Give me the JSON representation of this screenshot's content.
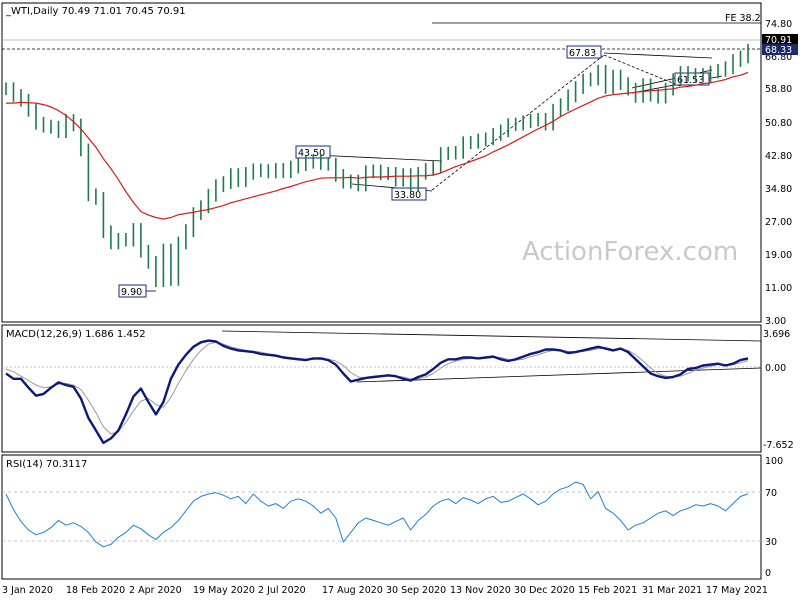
{
  "watermark": "ActionForex.com",
  "chart_data": [
    {
      "type": "line",
      "title": "_WTI,Daily  70.49 71.01 70.45 70.91",
      "y_ticks": [
        "74.80",
        "66.80",
        "58.80",
        "50.80",
        "42.80",
        "34.80",
        "27.00",
        "19.00",
        "11.00",
        "3.00"
      ],
      "ylim": [
        3,
        78
      ],
      "x_ticks": [
        "3 Jan 2020",
        "18 Feb 2020",
        "2 Apr 2020",
        "19 May 2020",
        "2 Jul 2020",
        "17 Aug 2020",
        "30 Sep 2020",
        "13 Nov 2020",
        "30 Dec 2020",
        "15 Feb 2021",
        "31 Mar 2021",
        "17 May 2021"
      ],
      "series": [
        {
          "values": [
            61.2,
            59.5,
            58.3,
            55.8,
            52.5,
            51.8,
            51.5,
            50.4,
            53.2,
            52.1,
            45.8,
            34.5,
            33.6,
            25.2,
            22.4,
            23.3,
            23.1,
            25.8,
            20.3,
            17.5,
            12.9,
            20.6,
            13.2,
            22.4,
            25.5,
            29.8,
            31.5,
            34.4,
            36.8,
            37.6,
            39.6,
            38.1,
            39.9,
            40.8,
            40.6,
            40.3,
            40.9,
            40.3,
            41.5,
            42.1,
            42.7,
            43.2,
            42.4,
            42.2,
            39.4,
            37.7,
            38.0,
            37.0,
            40.3,
            40.5,
            39.8,
            39.9,
            38.2,
            39.6,
            36.8,
            39.9,
            40.9,
            41.5,
            44.9,
            45.0,
            45.2,
            47.6,
            47.7,
            48.3,
            48.6,
            49.7,
            50.6,
            52.2,
            52.3,
            52.9,
            53.3,
            53.5,
            52.3,
            55.8,
            57.2,
            59.4,
            61.5,
            63.4,
            63.7,
            65.6,
            61.5,
            64.4,
            62.5,
            61.1,
            59.3,
            62.2,
            59.6,
            59.1,
            61.1,
            63.5,
            65.3,
            64.6,
            64.8,
            64.4,
            65.4,
            65.8,
            66.5,
            68.3,
            69.2,
            70.9
          ]
        },
        {
          "values": [
            57.6,
            57.6,
            57.8,
            57.7,
            57.6,
            57.2,
            56.6,
            55.7,
            54.5,
            52.9,
            51.1,
            48.8,
            46.5,
            43.6,
            41.1,
            38.3,
            35.3,
            32.6,
            30.3,
            29.4,
            28.8,
            28.4,
            28.8,
            29.5,
            29.8,
            30.1,
            30.5,
            30.8,
            31.3,
            31.8,
            32.5,
            33.0,
            33.5,
            34.0,
            34.5,
            35.0,
            35.5,
            36.1,
            36.6,
            37.2,
            37.8,
            38.2,
            38.7,
            38.8,
            38.8,
            38.8,
            38.9,
            38.7,
            38.9,
            39.0,
            39.0,
            39.1,
            39.2,
            39.2,
            39.2,
            39.3,
            39.3,
            39.5,
            40.0,
            40.8,
            41.6,
            42.2,
            42.9,
            43.6,
            44.3,
            45.3,
            46.2,
            47.1,
            48.1,
            49.1,
            50.1,
            51.1,
            52.0,
            53.0,
            54.2,
            55.2,
            56.1,
            57.0,
            57.9,
            58.8,
            59.4,
            59.7,
            59.9,
            60.1,
            60.3,
            60.5,
            60.7,
            60.8,
            61.0,
            61.2,
            61.6,
            61.8,
            62.1,
            62.5,
            62.7,
            63.1,
            63.5,
            64.2,
            64.6,
            65.3
          ]
        }
      ],
      "annotations": [
        "FE 38.2",
        "70.91",
        "68.33",
        "67.83",
        "61.53",
        "43.50",
        "33.80",
        "9.90"
      ]
    },
    {
      "type": "line",
      "title": "MACD(12,26,9) 1.686 1.452",
      "y_ticks": [
        "3.696",
        "0.00",
        "-7.652"
      ],
      "ylim": [
        -8.6,
        5.0
      ],
      "series": [
        {
          "values": [
            0.0,
            -0.6,
            -0.6,
            -1.6,
            -2.5,
            -2.3,
            -1.6,
            -1.0,
            -1.3,
            -1.5,
            -2.8,
            -5.0,
            -6.4,
            -7.8,
            -7.3,
            -6.4,
            -4.6,
            -2.6,
            -1.7,
            -3.2,
            -4.6,
            -3.2,
            -0.6,
            1.0,
            2.1,
            3.0,
            3.5,
            3.7,
            3.6,
            3.1,
            2.8,
            2.6,
            2.5,
            2.4,
            2.2,
            2.1,
            2.0,
            1.8,
            1.7,
            1.6,
            1.5,
            1.7,
            1.7,
            1.5,
            1.0,
            0.0,
            -0.9,
            -0.7,
            -0.5,
            -0.4,
            -0.3,
            -0.2,
            -0.3,
            -0.6,
            -0.8,
            -0.4,
            -0.1,
            0.5,
            1.2,
            1.6,
            1.6,
            1.8,
            1.8,
            1.7,
            1.8,
            1.9,
            1.6,
            1.4,
            1.6,
            1.9,
            2.2,
            2.4,
            2.7,
            2.7,
            2.6,
            2.3,
            2.4,
            2.6,
            2.8,
            3.0,
            2.8,
            2.6,
            2.8,
            2.4,
            1.6,
            0.8,
            0.0,
            -0.3,
            -0.5,
            -0.4,
            -0.1,
            0.5,
            0.6,
            0.9,
            1.0,
            1.1,
            0.9,
            1.1,
            1.5,
            1.7
          ]
        },
        {
          "values": [
            0.5,
            0.2,
            -0.3,
            -0.8,
            -1.3,
            -1.6,
            -1.5,
            -1.2,
            -1.1,
            -1.3,
            -1.8,
            -3.0,
            -4.4,
            -6.0,
            -6.8,
            -6.5,
            -5.5,
            -4.2,
            -3.1,
            -2.8,
            -3.5,
            -3.8,
            -2.7,
            -1.1,
            0.3,
            1.6,
            2.6,
            3.3,
            3.5,
            3.3,
            3.0,
            2.8,
            2.6,
            2.5,
            2.4,
            2.2,
            2.1,
            1.9,
            1.8,
            1.7,
            1.6,
            1.6,
            1.6,
            1.6,
            1.4,
            0.9,
            0.1,
            -0.4,
            -0.5,
            -0.5,
            -0.4,
            -0.3,
            -0.3,
            -0.4,
            -0.6,
            -0.6,
            -0.4,
            0.0,
            0.6,
            1.1,
            1.4,
            1.6,
            1.7,
            1.7,
            1.7,
            1.8,
            1.8,
            1.6,
            1.5,
            1.6,
            1.9,
            2.1,
            2.4,
            2.6,
            2.6,
            2.5,
            2.4,
            2.5,
            2.6,
            2.8,
            2.9,
            2.7,
            2.7,
            2.6,
            2.1,
            1.4,
            0.6,
            0.0,
            -0.3,
            -0.4,
            -0.3,
            0.0,
            0.4,
            0.6,
            0.8,
            1.0,
            1.0,
            1.0,
            1.2,
            1.45
          ]
        }
      ]
    },
    {
      "type": "line",
      "title": "RSI(14) 70.3117",
      "y_ticks": [
        "100",
        "70",
        "30",
        "0"
      ],
      "ylim": [
        0,
        100
      ],
      "series": [
        {
          "values": [
            70,
            57,
            47,
            40,
            36,
            38,
            42,
            48,
            44,
            46,
            43,
            38,
            30,
            26,
            28,
            34,
            38,
            44,
            41,
            36,
            32,
            38,
            42,
            48,
            56,
            64,
            68,
            70,
            71,
            69,
            66,
            68,
            62,
            70,
            64,
            60,
            62,
            58,
            64,
            66,
            64,
            60,
            54,
            58,
            50,
            30,
            38,
            46,
            50,
            48,
            46,
            44,
            47,
            50,
            40,
            48,
            53,
            60,
            64,
            66,
            62,
            67,
            65,
            62,
            66,
            68,
            63,
            64,
            67,
            70,
            66,
            61,
            64,
            70,
            74,
            76,
            80,
            78,
            66,
            72,
            58,
            54,
            48,
            40,
            44,
            46,
            50,
            54,
            56,
            52,
            56,
            58,
            61,
            60,
            62,
            60,
            56,
            62,
            68,
            70
          ]
        }
      ]
    }
  ]
}
